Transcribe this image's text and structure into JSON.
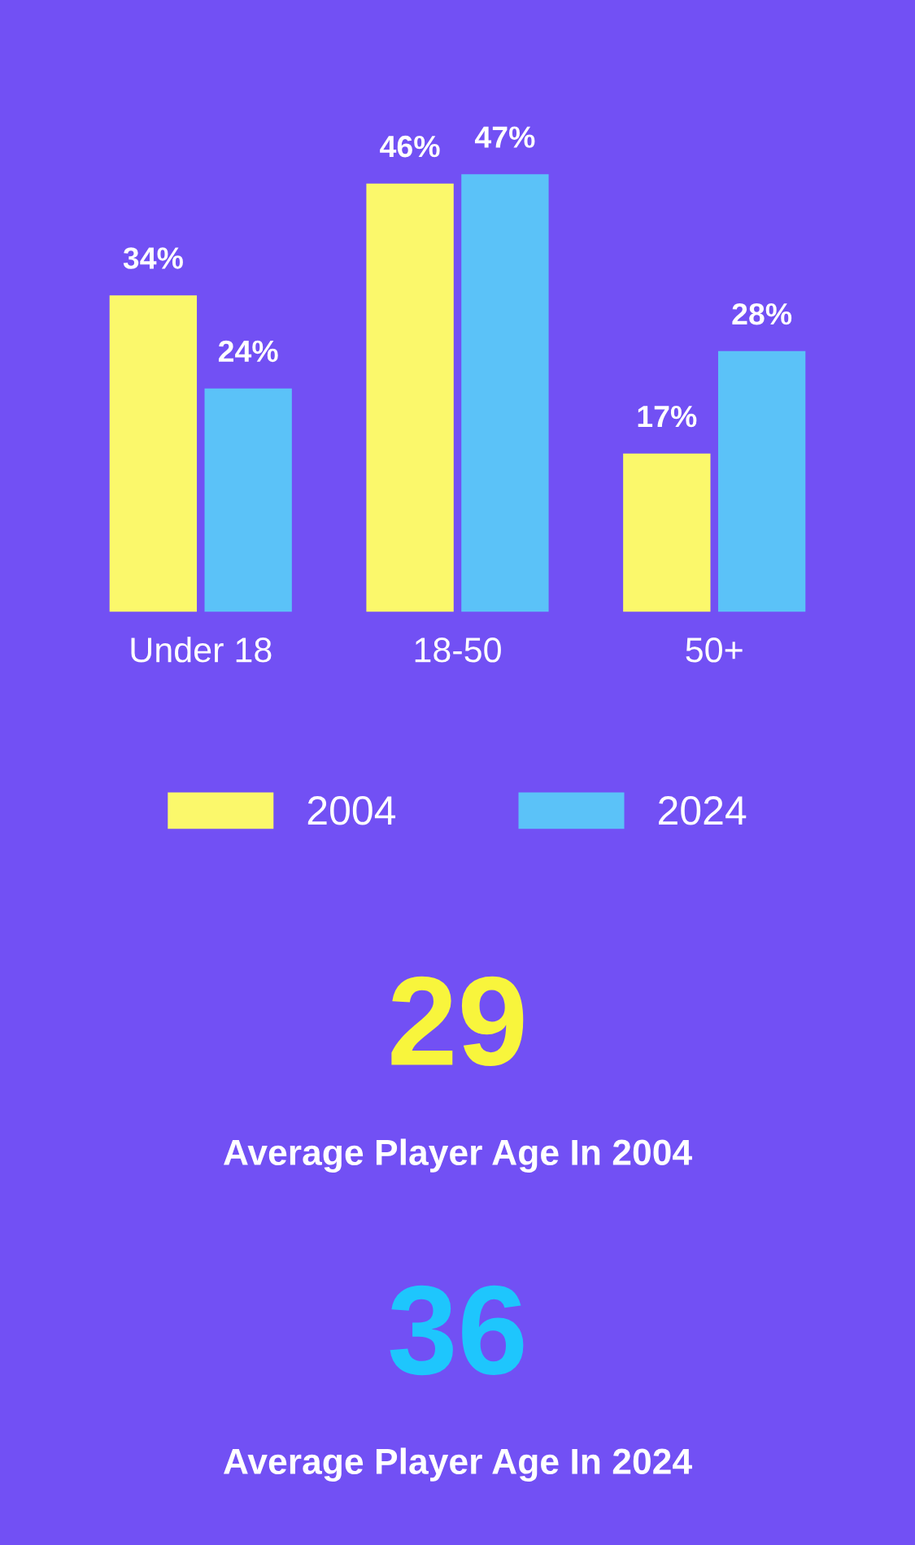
{
  "chart_data": [
    {
      "type": "bar",
      "categories": [
        "Under 18",
        "18-50",
        "50+"
      ],
      "series": [
        {
          "name": "2004",
          "color": "#fbf86b",
          "values": [
            34,
            46,
            17
          ],
          "value_labels": [
            "34%",
            "46%",
            "17%"
          ]
        },
        {
          "name": "2024",
          "color": "#5bc2f8",
          "values": [
            24,
            47,
            28
          ],
          "value_labels": [
            "24%",
            "47%",
            "28%"
          ]
        }
      ],
      "legend": "bottom",
      "grid": false
    },
    {
      "type": "other",
      "categories": [
        "Average Player Age In 2004",
        "Average Player Age In 2024"
      ],
      "values": [
        29,
        36
      ],
      "data_labels": true,
      "colors": [
        "#f8f53c",
        "#1ec6fd"
      ]
    }
  ]
}
